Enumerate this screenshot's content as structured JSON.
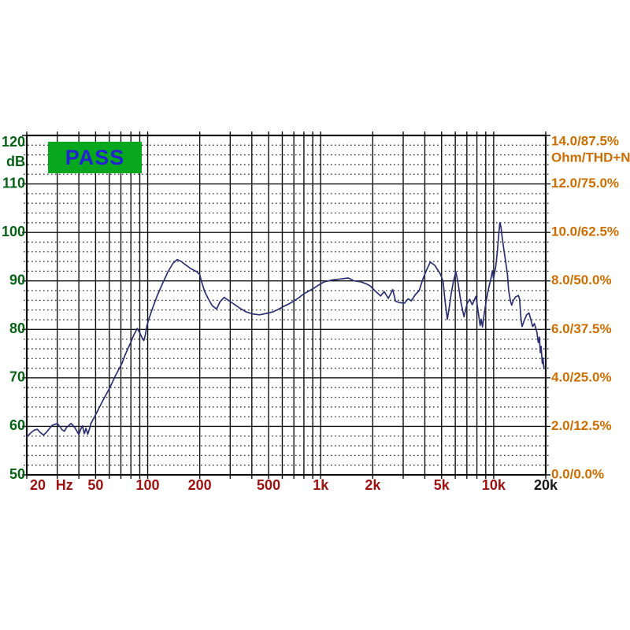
{
  "badge": {
    "label": "PASS"
  },
  "colors": {
    "background": "#ffffff",
    "badge_bg": "#07A71E",
    "badge_text": "#2323CF",
    "left_axis": "#066016",
    "right_axis": "#C96E00",
    "bottom_axis": "#9C1212",
    "bottom_axis_last": "#1a1a1a",
    "grid_major": "#101010",
    "grid_minor": "#2e2e2e",
    "curve": "#2D3070"
  },
  "chart_data": {
    "type": "line",
    "title": "",
    "x_axis": {
      "scale": "log",
      "min": 20,
      "max": 20000,
      "unit": "Hz",
      "tick_labels": [
        {
          "label": "20",
          "f": 20,
          "color": "#9C1212"
        },
        {
          "label": "Hz",
          "f": 33,
          "color": "#9C1212"
        },
        {
          "label": "50",
          "f": 50,
          "color": "#9C1212"
        },
        {
          "label": "100",
          "f": 100,
          "color": "#9C1212"
        },
        {
          "label": "200",
          "f": 200,
          "color": "#9C1212"
        },
        {
          "label": "500",
          "f": 500,
          "color": "#9C1212"
        },
        {
          "label": "1k",
          "f": 1000,
          "color": "#9C1212"
        },
        {
          "label": "2k",
          "f": 2000,
          "color": "#9C1212"
        },
        {
          "label": "5k",
          "f": 5000,
          "color": "#9C1212"
        },
        {
          "label": "10k",
          "f": 10000,
          "color": "#9C1212"
        },
        {
          "label": "20k",
          "f": 20000,
          "color": "#1a1a1a"
        }
      ]
    },
    "y_left": {
      "min": 50,
      "max": 120,
      "major_step": 10,
      "minor_step": 2,
      "unit": "dB",
      "ticks": [
        120,
        110,
        100,
        90,
        80,
        70,
        60,
        50
      ]
    },
    "y_right": {
      "unit": "Ohm/THD+N",
      "ticks": [
        {
          "label": "14.0/87.5%",
          "db": 120
        },
        {
          "label": "12.0/75.0%",
          "db": 110
        },
        {
          "label": "10.0/62.5%",
          "db": 100
        },
        {
          "label": "8.0/50.0%",
          "db": 90
        },
        {
          "label": "6.0/37.5%",
          "db": 80
        },
        {
          "label": "4.0/25.0%",
          "db": 70
        },
        {
          "label": "2.0/12.5%",
          "db": 60
        },
        {
          "label": "0.0/0.0%",
          "db": 50
        }
      ]
    },
    "series": [
      {
        "name": "frequency-response",
        "points": [
          [
            20,
            57.8
          ],
          [
            21,
            58.6
          ],
          [
            22,
            59.2
          ],
          [
            23,
            59.4
          ],
          [
            24,
            58.7
          ],
          [
            25,
            58.2
          ],
          [
            26,
            58.8
          ],
          [
            27,
            59.5
          ],
          [
            28,
            60.2
          ],
          [
            30,
            60.6
          ],
          [
            31,
            60.0
          ],
          [
            32,
            59.3
          ],
          [
            33,
            59.0
          ],
          [
            34,
            59.8
          ],
          [
            36,
            60.6
          ],
          [
            37,
            60.2
          ],
          [
            38,
            59.7
          ],
          [
            39,
            59.0
          ],
          [
            40,
            58.3
          ],
          [
            41,
            59.4
          ],
          [
            42,
            60.1
          ],
          [
            43,
            58.5
          ],
          [
            44,
            59.6
          ],
          [
            45,
            58.4
          ],
          [
            46,
            59.4
          ],
          [
            47,
            60.6
          ],
          [
            48,
            61.2
          ],
          [
            50,
            62.4
          ],
          [
            53,
            64.2
          ],
          [
            56,
            65.8
          ],
          [
            59,
            67.3
          ],
          [
            62,
            68.8
          ],
          [
            65,
            70.4
          ],
          [
            68,
            71.7
          ],
          [
            71,
            73.0
          ],
          [
            74,
            74.7
          ],
          [
            77,
            76.1
          ],
          [
            80,
            77.4
          ],
          [
            83,
            78.8
          ],
          [
            85,
            79.5
          ],
          [
            87,
            80.2
          ],
          [
            90,
            79.3
          ],
          [
            93,
            78.2
          ],
          [
            95,
            77.7
          ],
          [
            97,
            78.9
          ],
          [
            99,
            80.8
          ],
          [
            102,
            82.3
          ],
          [
            106,
            84.1
          ],
          [
            114,
            87.1
          ],
          [
            122,
            89.5
          ],
          [
            131,
            91.9
          ],
          [
            140,
            93.6
          ],
          [
            148,
            94.4
          ],
          [
            155,
            94.1
          ],
          [
            166,
            93.3
          ],
          [
            178,
            92.5
          ],
          [
            192,
            91.9
          ],
          [
            200,
            91.3
          ],
          [
            204,
            90.0
          ],
          [
            213,
            87.9
          ],
          [
            224,
            86.3
          ],
          [
            236,
            84.9
          ],
          [
            250,
            84.2
          ],
          [
            262,
            85.7
          ],
          [
            277,
            86.6
          ],
          [
            292,
            86.0
          ],
          [
            313,
            85.3
          ],
          [
            340,
            84.4
          ],
          [
            371,
            83.6
          ],
          [
            404,
            83.2
          ],
          [
            443,
            83.0
          ],
          [
            485,
            83.3
          ],
          [
            528,
            83.6
          ],
          [
            567,
            84.1
          ],
          [
            607,
            84.7
          ],
          [
            650,
            85.2
          ],
          [
            696,
            85.8
          ],
          [
            745,
            86.5
          ],
          [
            797,
            87.3
          ],
          [
            853,
            87.9
          ],
          [
            914,
            88.5
          ],
          [
            979,
            89.2
          ],
          [
            1048,
            89.8
          ],
          [
            1166,
            90.2
          ],
          [
            1298,
            90.4
          ],
          [
            1444,
            90.6
          ],
          [
            1560,
            90.0
          ],
          [
            1710,
            89.8
          ],
          [
            1830,
            89.4
          ],
          [
            1930,
            89.0
          ],
          [
            2070,
            87.9
          ],
          [
            2220,
            86.9
          ],
          [
            2330,
            87.8
          ],
          [
            2460,
            86.4
          ],
          [
            2610,
            88.2
          ],
          [
            2710,
            85.8
          ],
          [
            2880,
            85.5
          ],
          [
            3050,
            85.4
          ],
          [
            3200,
            86.3
          ],
          [
            3340,
            85.9
          ],
          [
            3530,
            87.2
          ],
          [
            3710,
            88.0
          ],
          [
            3900,
            90.4
          ],
          [
            4080,
            92.1
          ],
          [
            4300,
            93.9
          ],
          [
            4570,
            93.2
          ],
          [
            4920,
            91.4
          ],
          [
            5100,
            89.9
          ],
          [
            5250,
            85.5
          ],
          [
            5400,
            82.1
          ],
          [
            5550,
            84.8
          ],
          [
            5680,
            87.3
          ],
          [
            5850,
            89.8
          ],
          [
            6050,
            91.9
          ],
          [
            6230,
            89.5
          ],
          [
            6460,
            85.7
          ],
          [
            6740,
            82.6
          ],
          [
            7030,
            85.4
          ],
          [
            7270,
            86.2
          ],
          [
            7520,
            85.1
          ],
          [
            7900,
            86.8
          ],
          [
            8170,
            83.2
          ],
          [
            8350,
            80.8
          ],
          [
            8480,
            82.1
          ],
          [
            8620,
            80.5
          ],
          [
            8840,
            83.5
          ],
          [
            9120,
            86.5
          ],
          [
            9400,
            88.9
          ],
          [
            9690,
            90.8
          ],
          [
            9830,
            92.1
          ],
          [
            9980,
            90.5
          ],
          [
            10290,
            93.0
          ],
          [
            10500,
            96.0
          ],
          [
            10700,
            99.5
          ],
          [
            10850,
            102.0
          ],
          [
            11000,
            101.3
          ],
          [
            11200,
            99.0
          ],
          [
            11500,
            96.0
          ],
          [
            11800,
            93.3
          ],
          [
            12000,
            91.5
          ],
          [
            12200,
            88.2
          ],
          [
            12500,
            85.8
          ],
          [
            12700,
            85.0
          ],
          [
            13000,
            86.0
          ],
          [
            13400,
            86.7
          ],
          [
            13900,
            87.0
          ],
          [
            14100,
            86.3
          ],
          [
            14400,
            82.0
          ],
          [
            14600,
            80.6
          ],
          [
            15000,
            81.8
          ],
          [
            15500,
            83.0
          ],
          [
            16000,
            83.4
          ],
          [
            16400,
            82.0
          ],
          [
            16800,
            80.6
          ],
          [
            17200,
            81.2
          ],
          [
            17500,
            80.3
          ],
          [
            17800,
            79.3
          ],
          [
            18100,
            77.3
          ],
          [
            18400,
            78.4
          ],
          [
            18600,
            75.2
          ],
          [
            18800,
            76.5
          ],
          [
            19100,
            73.0
          ],
          [
            19250,
            74.1
          ],
          [
            19550,
            71.9
          ]
        ]
      }
    ]
  }
}
